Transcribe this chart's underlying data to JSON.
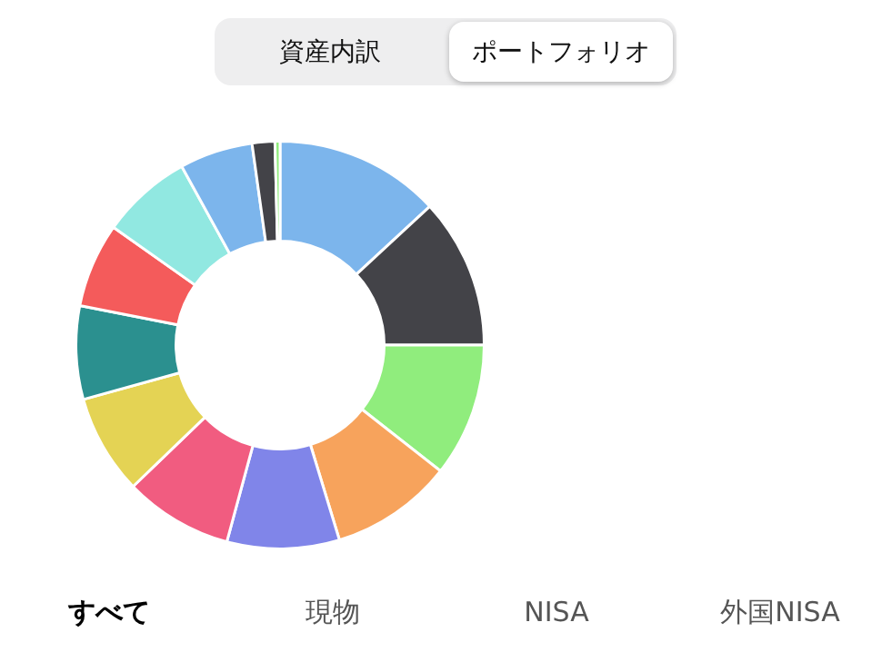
{
  "chart_data": {
    "type": "donut",
    "categories": [
      null,
      null,
      null,
      null,
      null,
      null,
      null,
      null,
      null,
      null,
      null,
      null,
      null
    ],
    "values": [
      13.1,
      11.9,
      10.6,
      9.7,
      8.9,
      8.6,
      7.9,
      7.4,
      6.7,
      7.2,
      5.8,
      1.8,
      0.4
    ],
    "colors": [
      "#7cb5ec",
      "#434348",
      "#90ed7d",
      "#f7a35c",
      "#8085e9",
      "#f15c80",
      "#e4d354",
      "#2b908f",
      "#f45b5b",
      "#91e8e1",
      "#7cb5ec",
      "#434348",
      "#90ed7d"
    ],
    "annotations": [
      "資産内訳",
      "ポートフォリオ",
      "すべて",
      "現物",
      "NISA",
      "外国NISA"
    ],
    "legend": false
  }
}
